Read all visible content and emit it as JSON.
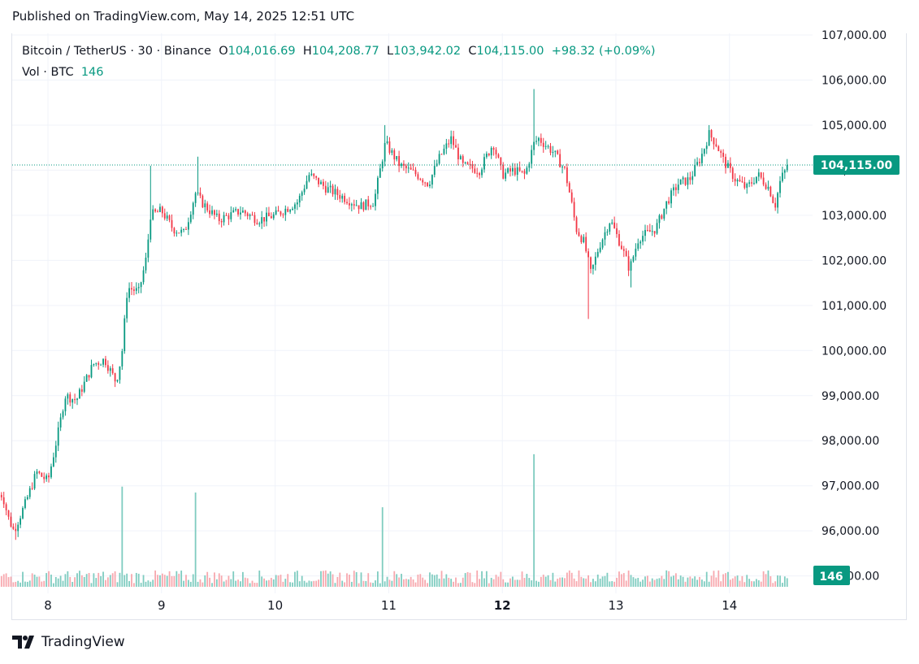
{
  "header": {
    "published": "Published on TradingView.com, May 14, 2025 12:51 UTC"
  },
  "legend": {
    "symbol": "Bitcoin / TetherUS · 30 · Binance",
    "o_label": "O",
    "o_value": "104,016.69",
    "h_label": "H",
    "h_value": "104,208.77",
    "l_label": "L",
    "l_value": "103,942.02",
    "c_label": "C",
    "c_value": "104,115.00",
    "change": "+98.32 (+0.09%)",
    "vol_label": "Vol · BTC",
    "vol_value": "146"
  },
  "price_axis": {
    "labels": [
      "107,000.00",
      "106,000.00",
      "105,000.00",
      "104,000.00",
      "103,000.00",
      "102,000.00",
      "101,000.00",
      "100,000.00",
      "99,000.00",
      "98,000.00",
      "97,000.00",
      "96,000.00",
      "95,000.00"
    ],
    "last_price": "104,115.00",
    "last_volume": "146"
  },
  "time_axis": {
    "labels": [
      "8",
      "9",
      "10",
      "11",
      "12",
      "13",
      "14"
    ],
    "bold": [
      "12"
    ]
  },
  "brand": {
    "name": "TradingView"
  },
  "colors": {
    "up": "#089981",
    "down": "#f23645",
    "up_volume": "#7fccc0",
    "down_volume": "#f7a8ae",
    "grid": "#f0f3fa",
    "last_price_label": "#089981"
  },
  "chart_data": {
    "type": "candlestick",
    "title": "Bitcoin / TetherUS · 30 · Binance",
    "interval": "30",
    "ylim": [
      95000,
      107000
    ],
    "x_day_labels": [
      "8",
      "9",
      "10",
      "11",
      "12",
      "13",
      "14"
    ],
    "last_close": 104115.0,
    "close_path": [
      {
        "day": 7.6,
        "close": 96800
      },
      {
        "day": 7.65,
        "close": 96300
      },
      {
        "day": 7.7,
        "close": 96000
      },
      {
        "day": 7.8,
        "close": 96600
      },
      {
        "day": 7.9,
        "close": 97300
      },
      {
        "day": 8.0,
        "close": 97100
      },
      {
        "day": 8.05,
        "close": 97700
      },
      {
        "day": 8.1,
        "close": 98300
      },
      {
        "day": 8.15,
        "close": 99000
      },
      {
        "day": 8.25,
        "close": 98900
      },
      {
        "day": 8.4,
        "close": 99700
      },
      {
        "day": 8.5,
        "close": 99800
      },
      {
        "day": 8.6,
        "close": 99300
      },
      {
        "day": 8.65,
        "close": 99900
      },
      {
        "day": 8.7,
        "close": 101400
      },
      {
        "day": 8.8,
        "close": 101300
      },
      {
        "day": 8.87,
        "close": 102100
      },
      {
        "day": 8.9,
        "close": 103000
      },
      {
        "day": 9.0,
        "close": 103100
      },
      {
        "day": 9.1,
        "close": 102700
      },
      {
        "day": 9.2,
        "close": 102600
      },
      {
        "day": 9.3,
        "close": 103500
      },
      {
        "day": 9.35,
        "close": 103300
      },
      {
        "day": 9.5,
        "close": 102900
      },
      {
        "day": 9.7,
        "close": 103100
      },
      {
        "day": 9.85,
        "close": 102900
      },
      {
        "day": 10.0,
        "close": 103000
      },
      {
        "day": 10.2,
        "close": 103300
      },
      {
        "day": 10.3,
        "close": 103900
      },
      {
        "day": 10.45,
        "close": 103600
      },
      {
        "day": 10.6,
        "close": 103400
      },
      {
        "day": 10.75,
        "close": 103200
      },
      {
        "day": 10.87,
        "close": 103300
      },
      {
        "day": 10.97,
        "close": 104600
      },
      {
        "day": 11.1,
        "close": 104100
      },
      {
        "day": 11.25,
        "close": 103900
      },
      {
        "day": 11.35,
        "close": 103700
      },
      {
        "day": 11.45,
        "close": 104300
      },
      {
        "day": 11.55,
        "close": 104700
      },
      {
        "day": 11.65,
        "close": 104100
      },
      {
        "day": 11.8,
        "close": 104000
      },
      {
        "day": 11.92,
        "close": 104600
      },
      {
        "day": 12.0,
        "close": 103900
      },
      {
        "day": 12.1,
        "close": 104000
      },
      {
        "day": 12.2,
        "close": 103900
      },
      {
        "day": 12.28,
        "close": 104600
      },
      {
        "day": 12.32,
        "close": 104700
      },
      {
        "day": 12.45,
        "close": 104400
      },
      {
        "day": 12.55,
        "close": 104000
      },
      {
        "day": 12.6,
        "close": 103400
      },
      {
        "day": 12.65,
        "close": 102700
      },
      {
        "day": 12.72,
        "close": 102400
      },
      {
        "day": 12.78,
        "close": 101700
      },
      {
        "day": 12.85,
        "close": 102300
      },
      {
        "day": 12.95,
        "close": 102900
      },
      {
        "day": 13.05,
        "close": 102300
      },
      {
        "day": 13.12,
        "close": 101800
      },
      {
        "day": 13.2,
        "close": 102500
      },
      {
        "day": 13.35,
        "close": 102700
      },
      {
        "day": 13.45,
        "close": 103300
      },
      {
        "day": 13.55,
        "close": 103700
      },
      {
        "day": 13.65,
        "close": 103800
      },
      {
        "day": 13.75,
        "close": 104300
      },
      {
        "day": 13.82,
        "close": 104800
      },
      {
        "day": 13.88,
        "close": 104600
      },
      {
        "day": 13.95,
        "close": 104200
      },
      {
        "day": 14.05,
        "close": 103800
      },
      {
        "day": 14.15,
        "close": 103600
      },
      {
        "day": 14.25,
        "close": 103900
      },
      {
        "day": 14.35,
        "close": 103600
      },
      {
        "day": 14.4,
        "close": 103200
      },
      {
        "day": 14.45,
        "close": 103800
      },
      {
        "day": 14.52,
        "close": 104115
      }
    ],
    "notable_highs": [
      {
        "day": 8.9,
        "high": 104100
      },
      {
        "day": 9.32,
        "high": 104300
      },
      {
        "day": 10.97,
        "high": 105000
      },
      {
        "day": 12.28,
        "high": 105800
      },
      {
        "day": 13.82,
        "high": 105000
      }
    ],
    "notable_lows": [
      {
        "day": 7.72,
        "low": 95800
      },
      {
        "day": 12.75,
        "low": 100700
      },
      {
        "day": 13.13,
        "low": 101400
      }
    ],
    "volume_spikes_btc": [
      {
        "day": 8.65,
        "volume": 1700
      },
      {
        "day": 9.3,
        "volume": 1600
      },
      {
        "day": 10.95,
        "volume": 1350
      },
      {
        "day": 12.28,
        "volume": 2250
      }
    ],
    "last_volume": 146
  }
}
